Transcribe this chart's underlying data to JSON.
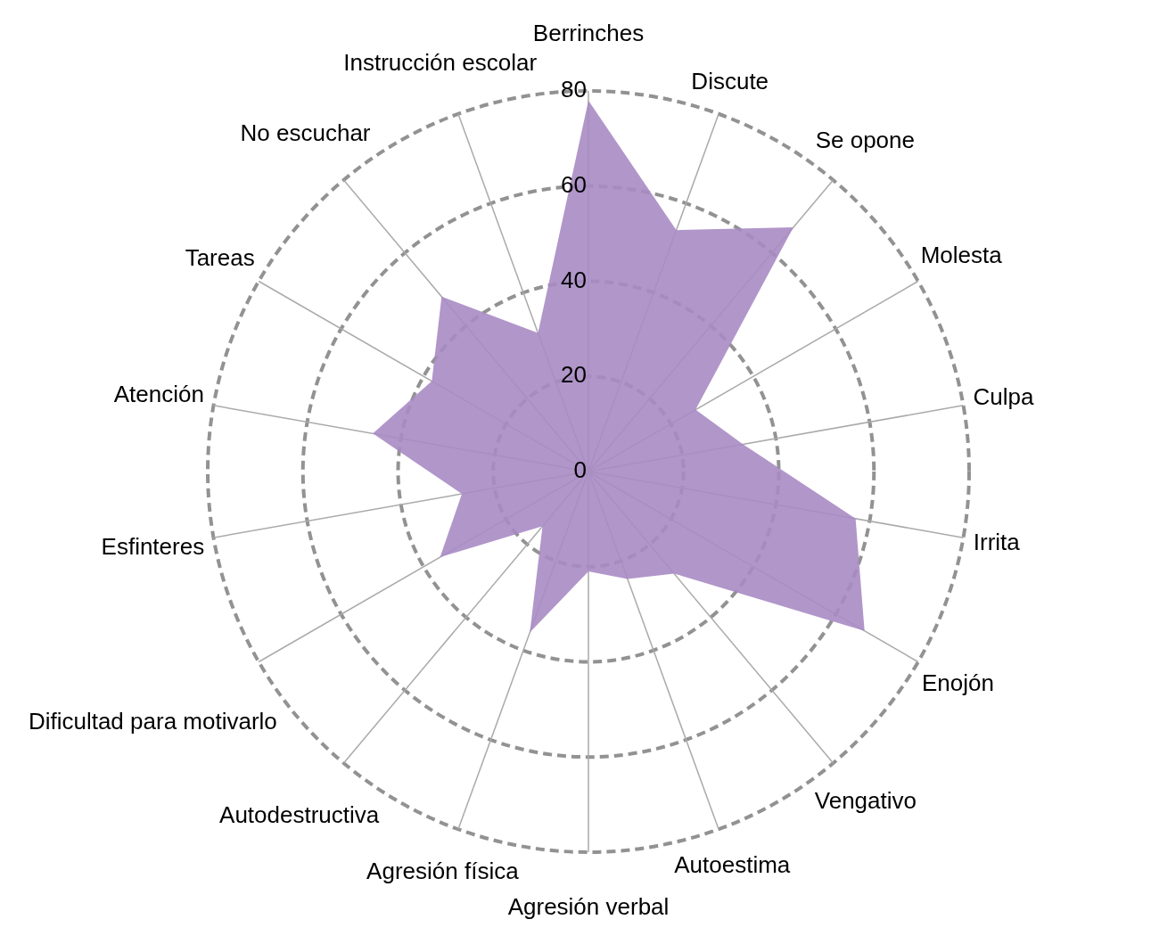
{
  "chart_data": {
    "type": "radar",
    "categories": [
      "Berrinches",
      "Discute",
      "Se opone",
      "Molesta",
      "Culpa",
      "Irrita",
      "Enojón",
      "Vengativo",
      "Autoestima",
      "Agresión verbal",
      "Agresión física",
      "Autodestructiva",
      "Dificultad para motivarlo",
      "Esfinteres",
      "Atención",
      "Tareas",
      "No escuchar",
      "Instrucción escolar"
    ],
    "series": [
      {
        "color": "#a88bc4",
        "values": [
          78,
          54,
          67,
          26,
          33,
          57,
          67,
          28,
          24,
          21,
          36,
          15,
          36,
          27,
          46,
          38,
          48,
          31
        ]
      }
    ],
    "ylim": [
      0,
      80
    ],
    "yticks": [
      0,
      20,
      40,
      60,
      80
    ],
    "grid": true,
    "legend": false,
    "marker": "none"
  }
}
